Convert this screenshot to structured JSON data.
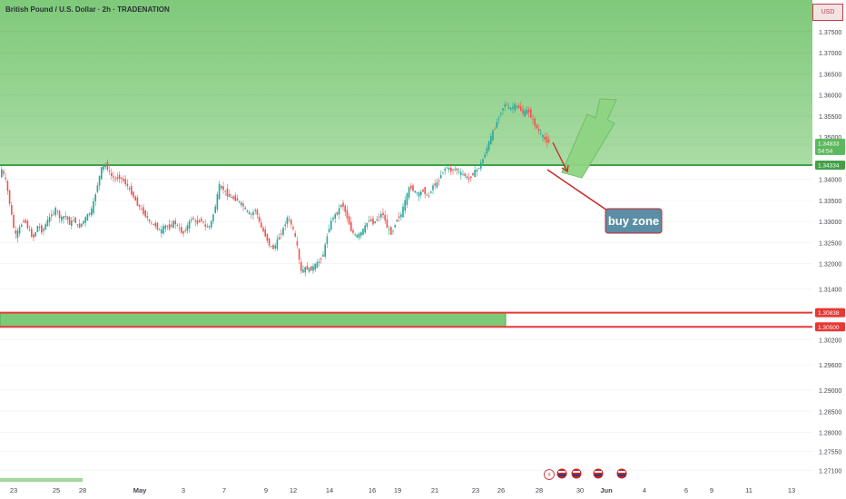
{
  "header": {
    "symbol_title": "British Pound / U.S. Dollar · 2h · TRADENATION",
    "currency_badge": "USD"
  },
  "annotation": {
    "label": "buy zone"
  },
  "colors": {
    "bull": "#26a69a",
    "bear": "#ef5350",
    "zone_fill": "#9fd89a",
    "support_line": "#4caf50",
    "resistance_line": "#e53935",
    "arrow_up": "#7ccf6e",
    "arrow_down": "#c62828",
    "label_bg": "#5b8ea5"
  },
  "chart_data": {
    "type": "candlestick",
    "symbol": "GBPUSD",
    "timeframe": "2h",
    "y_axis": {
      "ylim": [
        1.2685,
        1.3825
      ],
      "ticks": [
        "1.37500",
        "1.37000",
        "1.36500",
        "1.36000",
        "1.35500",
        "1.35000",
        "1.34000",
        "1.33500",
        "1.33000",
        "1.32500",
        "1.32000",
        "1.31400",
        "1.30200",
        "1.29600",
        "1.29000",
        "1.28500",
        "1.28000",
        "1.27550",
        "1.27100"
      ],
      "tick_values": [
        1.375,
        1.37,
        1.365,
        1.36,
        1.355,
        1.35,
        1.34,
        1.335,
        1.33,
        1.325,
        1.32,
        1.314,
        1.302,
        1.296,
        1.29,
        1.285,
        1.28,
        1.2755,
        1.271
      ]
    },
    "x_axis": {
      "labels": [
        "23",
        "25",
        "28",
        "May",
        "3",
        "7",
        "9",
        "12",
        "14",
        "16",
        "19",
        "21",
        "23",
        "26",
        "28",
        "30",
        "Jun",
        "4",
        "6",
        "9",
        "11",
        "13"
      ],
      "bold": [
        "May",
        "Jun"
      ]
    },
    "price_labels": [
      {
        "text": "1.34833",
        "sub": "54:54",
        "value": 1.34833,
        "kind": "current"
      },
      {
        "text": "1.34334",
        "value": 1.34334,
        "kind": "support"
      },
      {
        "text": "1.30838",
        "value": 1.30838,
        "kind": "resistance"
      },
      {
        "text": "1.30500",
        "value": 1.305,
        "kind": "resistance"
      }
    ],
    "levels": {
      "support": 1.34334,
      "zone_top": 1.30838,
      "zone_bottom": 1.305,
      "green_zone_top": 1.3825
    },
    "path": [
      [
        0,
        1.3395
      ],
      [
        3,
        1.3425
      ],
      [
        8,
        1.3395
      ],
      [
        13,
        1.333
      ],
      [
        18,
        1.3265
      ],
      [
        23,
        1.3285
      ],
      [
        28,
        1.3305
      ],
      [
        33,
        1.328
      ],
      [
        38,
        1.326
      ],
      [
        43,
        1.329
      ],
      [
        48,
        1.3275
      ],
      [
        53,
        1.33
      ],
      [
        58,
        1.3315
      ],
      [
        63,
        1.333
      ],
      [
        68,
        1.3305
      ],
      [
        73,
        1.3315
      ],
      [
        78,
        1.3295
      ],
      [
        83,
        1.3305
      ],
      [
        88,
        1.3285
      ],
      [
        93,
        1.33
      ],
      [
        98,
        1.3315
      ],
      [
        103,
        1.333
      ],
      [
        108,
        1.338
      ],
      [
        113,
        1.3425
      ],
      [
        118,
        1.3435
      ],
      [
        123,
        1.341
      ],
      [
        128,
        1.34
      ],
      [
        133,
        1.3405
      ],
      [
        138,
        1.3395
      ],
      [
        143,
        1.338
      ],
      [
        148,
        1.336
      ],
      [
        153,
        1.334
      ],
      [
        158,
        1.3325
      ],
      [
        163,
        1.331
      ],
      [
        168,
        1.3295
      ],
      [
        173,
        1.329
      ],
      [
        178,
        1.3275
      ],
      [
        183,
        1.329
      ],
      [
        188,
        1.3285
      ],
      [
        193,
        1.33
      ],
      [
        198,
        1.3285
      ],
      [
        203,
        1.327
      ],
      [
        208,
        1.329
      ],
      [
        213,
        1.331
      ],
      [
        218,
        1.3295
      ],
      [
        223,
        1.3305
      ],
      [
        228,
        1.3285
      ],
      [
        233,
        1.329
      ],
      [
        238,
        1.333
      ],
      [
        243,
        1.3385
      ],
      [
        248,
        1.3375
      ],
      [
        253,
        1.336
      ],
      [
        258,
        1.3355
      ],
      [
        263,
        1.335
      ],
      [
        268,
        1.334
      ],
      [
        273,
        1.3325
      ],
      [
        278,
        1.3315
      ],
      [
        283,
        1.333
      ],
      [
        288,
        1.329
      ],
      [
        293,
        1.327
      ],
      [
        298,
        1.3245
      ],
      [
        303,
        1.3235
      ],
      [
        308,
        1.326
      ],
      [
        313,
        1.328
      ],
      [
        318,
        1.331
      ],
      [
        323,
        1.329
      ],
      [
        328,
        1.325
      ],
      [
        333,
        1.318
      ],
      [
        338,
        1.319
      ],
      [
        343,
        1.3185
      ],
      [
        348,
        1.3195
      ],
      [
        353,
        1.3205
      ],
      [
        358,
        1.3225
      ],
      [
        363,
        1.328
      ],
      [
        368,
        1.331
      ],
      [
        373,
        1.332
      ],
      [
        378,
        1.3345
      ],
      [
        383,
        1.3315
      ],
      [
        388,
        1.328
      ],
      [
        393,
        1.3265
      ],
      [
        398,
        1.327
      ],
      [
        403,
        1.3285
      ],
      [
        408,
        1.3305
      ],
      [
        413,
        1.3295
      ],
      [
        418,
        1.331
      ],
      [
        423,
        1.332
      ],
      [
        428,
        1.3285
      ],
      [
        433,
        1.327
      ],
      [
        438,
        1.3305
      ],
      [
        443,
        1.3315
      ],
      [
        448,
        1.335
      ],
      [
        453,
        1.3385
      ],
      [
        458,
        1.337
      ],
      [
        463,
        1.3365
      ],
      [
        468,
        1.3375
      ],
      [
        473,
        1.3355
      ],
      [
        478,
        1.3385
      ],
      [
        483,
        1.339
      ],
      [
        488,
        1.3415
      ],
      [
        493,
        1.343
      ],
      [
        498,
        1.342
      ],
      [
        503,
        1.3425
      ],
      [
        508,
        1.3415
      ],
      [
        513,
        1.341
      ],
      [
        518,
        1.34
      ],
      [
        523,
        1.3415
      ],
      [
        528,
        1.3425
      ],
      [
        533,
        1.3445
      ],
      [
        538,
        1.3475
      ],
      [
        543,
        1.3505
      ],
      [
        548,
        1.353
      ],
      [
        553,
        1.356
      ],
      [
        558,
        1.358
      ],
      [
        563,
        1.3565
      ],
      [
        568,
        1.3575
      ],
      [
        573,
        1.357
      ],
      [
        578,
        1.3555
      ],
      [
        583,
        1.3565
      ],
      [
        588,
        1.354
      ],
      [
        593,
        1.352
      ],
      [
        598,
        1.3505
      ],
      [
        603,
        1.349
      ]
    ]
  }
}
